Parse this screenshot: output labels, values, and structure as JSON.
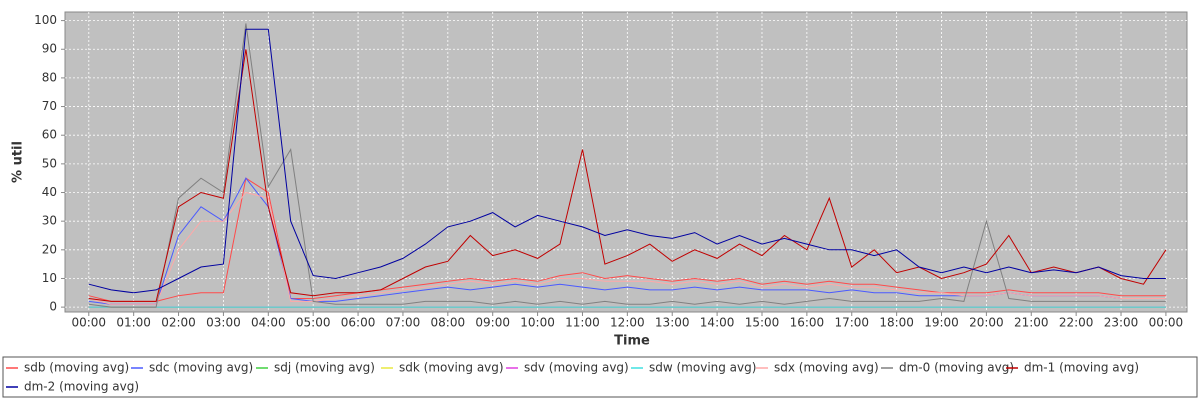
{
  "chart_data": {
    "type": "line",
    "xlabel": "Time",
    "ylabel": "% util",
    "x": [
      0,
      0.5,
      1,
      1.5,
      2,
      2.5,
      3,
      3.5,
      4,
      4.5,
      5,
      5.5,
      6,
      6.5,
      7,
      7.5,
      8,
      8.5,
      9,
      9.5,
      10,
      10.5,
      11,
      11.5,
      12,
      12.5,
      13,
      13.5,
      14,
      14.5,
      15,
      15.5,
      16,
      16.5,
      17,
      17.5,
      18,
      18.5,
      19,
      19.5,
      20,
      20.5,
      21,
      21.5,
      22,
      22.5,
      23,
      23.5,
      24
    ],
    "xlim": [
      -0.53,
      24.47
    ],
    "xticks": [
      {
        "value": 0,
        "label": "00:00"
      },
      {
        "value": 1,
        "label": "01:00"
      },
      {
        "value": 2,
        "label": "02:00"
      },
      {
        "value": 3,
        "label": "03:00"
      },
      {
        "value": 4,
        "label": "04:00"
      },
      {
        "value": 5,
        "label": "05:00"
      },
      {
        "value": 6,
        "label": "06:00"
      },
      {
        "value": 7,
        "label": "07:00"
      },
      {
        "value": 8,
        "label": "08:00"
      },
      {
        "value": 9,
        "label": "09:00"
      },
      {
        "value": 10,
        "label": "10:00"
      },
      {
        "value": 11,
        "label": "11:00"
      },
      {
        "value": 12,
        "label": "12:00"
      },
      {
        "value": 13,
        "label": "13:00"
      },
      {
        "value": 14,
        "label": "14:00"
      },
      {
        "value": 15,
        "label": "15:00"
      },
      {
        "value": 16,
        "label": "16:00"
      },
      {
        "value": 17,
        "label": "17:00"
      },
      {
        "value": 18,
        "label": "18:00"
      },
      {
        "value": 19,
        "label": "19:00"
      },
      {
        "value": 20,
        "label": "20:00"
      },
      {
        "value": 21,
        "label": "21:00"
      },
      {
        "value": 22,
        "label": "22:00"
      },
      {
        "value": 23,
        "label": "23:00"
      },
      {
        "value": 24,
        "label": "00:00"
      }
    ],
    "ylim": [
      -1.7,
      103
    ],
    "yticks": [
      0,
      10,
      20,
      30,
      40,
      50,
      60,
      70,
      80,
      90,
      100
    ],
    "grid": true,
    "legend": "bottom",
    "series": [
      {
        "name": "sdb (moving avg)",
        "color": "#ff4a4a",
        "values": [
          4,
          2,
          2,
          2,
          4,
          5,
          5,
          45,
          40,
          3,
          3,
          4,
          5,
          6,
          7,
          8,
          9,
          10,
          9,
          10,
          9,
          11,
          12,
          10,
          11,
          10,
          9,
          10,
          9,
          10,
          8,
          9,
          8,
          9,
          8,
          8,
          7,
          6,
          5,
          5,
          5,
          6,
          5,
          5,
          5,
          5,
          4,
          4,
          4
        ]
      },
      {
        "name": "sdc (moving avg)",
        "color": "#4a5aff",
        "values": [
          2,
          1,
          1,
          1,
          25,
          35,
          30,
          45,
          35,
          3,
          2,
          2,
          3,
          4,
          5,
          6,
          7,
          6,
          7,
          8,
          7,
          8,
          7,
          6,
          7,
          6,
          6,
          7,
          6,
          7,
          6,
          6,
          6,
          5,
          6,
          5,
          5,
          4,
          4,
          4,
          4,
          5,
          4,
          4,
          4,
          4,
          3,
          3,
          3
        ]
      },
      {
        "name": "sdj (moving avg)",
        "color": "#40d040",
        "values": [
          0,
          0,
          0,
          0,
          0,
          0,
          0,
          0,
          0,
          0,
          0,
          0,
          0,
          0,
          0,
          0,
          0,
          0,
          0,
          0,
          0,
          0,
          0,
          0,
          0,
          0,
          0,
          0,
          0,
          0,
          0,
          0,
          0,
          0,
          0,
          0,
          0,
          0,
          0,
          0,
          0,
          0,
          0,
          0,
          0,
          0,
          0,
          0,
          0
        ]
      },
      {
        "name": "sdk (moving avg)",
        "color": "#e8e840",
        "values": [
          0,
          0,
          0,
          0,
          0,
          0,
          0,
          0,
          0,
          0,
          0,
          0,
          0,
          0,
          0,
          0,
          0,
          0,
          0,
          0,
          0,
          0,
          0,
          0,
          0,
          0,
          0,
          0,
          0,
          0,
          0,
          0,
          0,
          0,
          0,
          0,
          0,
          0,
          0,
          0,
          0,
          0,
          0,
          0,
          0,
          0,
          0,
          0,
          0
        ]
      },
      {
        "name": "sdv (moving avg)",
        "color": "#e040e0",
        "values": [
          0,
          0,
          0,
          0,
          0,
          0,
          0,
          0,
          0,
          0,
          0,
          0,
          0,
          0,
          0,
          0,
          0,
          0,
          0,
          0,
          0,
          0,
          0,
          0,
          0,
          0,
          0,
          0,
          0,
          0,
          0,
          0,
          0,
          0,
          0,
          0,
          0,
          0,
          0,
          0,
          0,
          0,
          0,
          0,
          0,
          0,
          0,
          0,
          0
        ]
      },
      {
        "name": "sdw (moving avg)",
        "color": "#40e0e0",
        "values": [
          0,
          0,
          0,
          0,
          0,
          0,
          0,
          0,
          0,
          0,
          0,
          0,
          0,
          0,
          0,
          0,
          0,
          0,
          0,
          0,
          0,
          0,
          0,
          0,
          0,
          0,
          0,
          0,
          0,
          0,
          0,
          0,
          0,
          0,
          0,
          0,
          0,
          0,
          0,
          0,
          0,
          0,
          0,
          0,
          0,
          0,
          0,
          0,
          0
        ]
      },
      {
        "name": "sdx (moving avg)",
        "color": "#ffa8a8",
        "values": [
          3,
          1,
          1,
          1,
          20,
          30,
          30,
          40,
          38,
          2,
          2,
          3,
          4,
          5,
          6,
          7,
          8,
          9,
          8,
          9,
          8,
          10,
          10,
          9,
          9,
          9,
          8,
          9,
          8,
          9,
          7,
          8,
          7,
          8,
          7,
          7,
          6,
          5,
          5,
          4,
          4,
          5,
          4,
          4,
          4,
          4,
          3,
          3,
          3
        ]
      },
      {
        "name": "dm-0 (moving avg)",
        "color": "#808080",
        "values": [
          1,
          0,
          0,
          0,
          38,
          45,
          40,
          99,
          42,
          55,
          2,
          1,
          1,
          1,
          1,
          2,
          2,
          2,
          1,
          2,
          1,
          2,
          1,
          2,
          1,
          1,
          2,
          1,
          2,
          1,
          2,
          1,
          2,
          3,
          2,
          2,
          2,
          2,
          3,
          2,
          30,
          3,
          2,
          2,
          2,
          2,
          2,
          2,
          2
        ]
      },
      {
        "name": "dm-1 (moving avg)",
        "color": "#c00000",
        "values": [
          3,
          2,
          2,
          2,
          35,
          40,
          38,
          90,
          35,
          5,
          4,
          5,
          5,
          6,
          10,
          14,
          16,
          25,
          18,
          20,
          17,
          22,
          55,
          15,
          18,
          22,
          16,
          20,
          17,
          22,
          18,
          25,
          20,
          38,
          14,
          20,
          12,
          14,
          10,
          12,
          15,
          25,
          12,
          14,
          12,
          14,
          10,
          8,
          20
        ]
      },
      {
        "name": "dm-2 (moving avg)",
        "color": "#0000a0",
        "values": [
          8,
          6,
          5,
          6,
          10,
          14,
          15,
          97,
          97,
          30,
          11,
          10,
          12,
          14,
          17,
          22,
          28,
          30,
          33,
          28,
          32,
          30,
          28,
          25,
          27,
          25,
          24,
          26,
          22,
          25,
          22,
          24,
          22,
          20,
          20,
          18,
          20,
          14,
          12,
          14,
          12,
          14,
          12,
          13,
          12,
          14,
          11,
          10,
          10
        ]
      }
    ]
  }
}
